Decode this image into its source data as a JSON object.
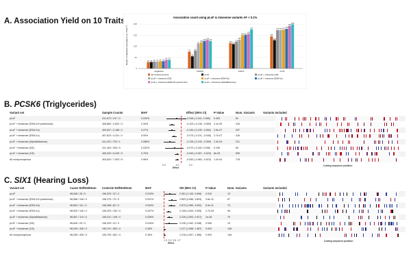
{
  "section_a": {
    "title": "A. Association Yield on 10 Traits"
  },
  "section_b": {
    "title_prefix": "B. ",
    "gene": "PCSK6",
    "title_suffix": " (Triglycerides)"
  },
  "section_c": {
    "title_prefix": "C. ",
    "gene": "SIX1",
    "title_suffix": " (Hearing Loss)"
  },
  "chart_data": {
    "type": "bar",
    "title": "Association count using pLoF & missense variants AF < 0.1%",
    "ylabel": "Number of significant associations (p < 5x10⁻⁸)",
    "categories": [
      "singletons",
      "0.001%",
      "0.01%",
      "0.1%"
    ],
    "series": [
      {
        "name": "All nonsynonymous",
        "color": "#d9661f",
        "values": [
          29,
          76,
          115,
          145
        ]
      },
      {
        "name": "pLoF",
        "color": "#111111",
        "values": [
          29,
          55,
          110,
          128
        ]
      },
      {
        "name": "pLoF + missense (1/5)",
        "color": "#8c8c8c",
        "values": [
          31,
          80,
          120,
          173
        ]
      },
      {
        "name": "pLoF + missense (3/5)",
        "color": "#a8a8a8",
        "values": [
          31,
          111,
          130,
          173
        ]
      },
      {
        "name": "pLoF + missense (ESM-1b)",
        "color": "#e7a51f",
        "values": [
          33,
          118,
          150,
          175
        ]
      },
      {
        "name": "pLoF + missense (ESM-1v)",
        "color": "#2b6cb0",
        "values": [
          33,
          124,
          151,
          179
        ]
      },
      {
        "name": "pLoF + missense (ESM-1b+proteomics)",
        "color": "#cc6fb7",
        "values": [
          39,
          129,
          156,
          192
        ]
      },
      {
        "name": "pLoF + missense (AlphaMissense)",
        "color": "#2eb8c2",
        "values": [
          39,
          124,
          177,
          199
        ]
      }
    ],
    "ylim": [
      0,
      210
    ],
    "grid": true,
    "legend": "bottom"
  },
  "table_b": {
    "headers": [
      "Variant set",
      "Sample Counts",
      "MAF",
      "Effect (95% CI)",
      "P-Value",
      "Num. Variants",
      "Variants Included"
    ],
    "axis_label": "Effect",
    "axis_ticks": [
      "-0.2",
      "-0.1",
      "0.0"
    ],
    "footer": "Coding sequence position",
    "rows": [
      [
        "pLoF",
        "411,679 / 247 / 0",
        "0.030%",
        "-0.048 (-0.161, 0.066)",
        "0.409",
        "81"
      ],
      [
        "pLoF + missense (ESM-1b+proteomics)",
        "408,882 / 2,832 / 3",
        "0.34%",
        "-0.103 (-0.136, -0.069)",
        "2.1e-09",
        "316"
      ],
      [
        "pLoF + missense (ESM-1b)",
        "409,537 / 2,188 / 1",
        "0.27%",
        "-0.100 (-0.139, -0.062)",
        "2.5e-07",
        "297"
      ],
      [
        "pLoF + missense (ESM-1v)",
        "407,623 / 4,101 / 2",
        "0.50%",
        "-0.073 (-0.101, -0.045)",
        "2.7e-07",
        "416"
      ],
      [
        "pLoF + missense (AlphaMissense)",
        "411,022 / 703 / 1",
        "0.086%",
        "-0.126 (-0.193, -0.059)",
        "2.3e-04",
        "221"
      ],
      [
        "pLoF + missense (3/5)",
        "411,493 / 283 / 0",
        "0.032%",
        "-0.072 (-0.182, 0.038)",
        "0.199",
        "84"
      ],
      [
        "pLoF + missense (1/5)",
        "405,294 / 6,439 / 3",
        "0.79%",
        "-0.040 (-0.067, -0.023)",
        "8e-05",
        "599"
      ],
      [
        "All nonsynonymous",
        "403,620 / 7,903 / 5",
        "0.96%",
        "-0.040 (-0.060, -0.019)",
        "1.2e-04",
        "718"
      ]
    ],
    "effects": [
      [
        -0.048,
        -0.161,
        0.066
      ],
      [
        -0.103,
        -0.136,
        -0.069
      ],
      [
        -0.1,
        -0.139,
        -0.062
      ],
      [
        -0.073,
        -0.101,
        -0.045
      ],
      [
        -0.126,
        -0.193,
        -0.059
      ],
      [
        -0.072,
        -0.182,
        0.038
      ],
      [
        -0.04,
        -0.067,
        -0.023
      ],
      [
        -0.04,
        -0.06,
        -0.019
      ]
    ]
  },
  "table_c": {
    "headers": [
      "Variant set",
      "Cases Ref/Het/Hom",
      "Controls Ref/Het/Hom",
      "MAF",
      "OR (95% CI)",
      "P-Value",
      "Num. Variants",
      "Variants Included"
    ],
    "axis_label": "Effect",
    "axis_ticks": [
      "1.5",
      "2.3",
      "3.5",
      "2.7"
    ],
    "footer": "Coding sequence position",
    "rows": [
      [
        "pLoF",
        "98,648 / 26 / 0",
        "196,329 / 22 / 0",
        "0.015%",
        "2.361 (1.145, 3.696)",
        "0.015",
        "13"
      ],
      [
        "pLoF + missense (ESM-1b+proteomics)",
        "98,568 / 106 / 0",
        "196,276 / 75 / 0",
        "0.031%",
        "2.803 (2.086, 3.803)",
        "3.6e-11",
        "67"
      ],
      [
        "pLoF + missense (ESM-1b)",
        "98,563 / 111 / 0",
        "196,268 / 82 / 0",
        "0.033%",
        "2.673 (1.989, 3.592)",
        "6.9e-11",
        "73"
      ],
      [
        "pLoF + missense (ESM-1v)",
        "98,525 / 145 / 0",
        "196,203 / 154 / 0",
        "0.047%",
        "2.108 (1.649, 2.695)",
        "2.7e-09",
        "96"
      ],
      [
        "pLoF + missense (AlphaMissense)",
        "98,551 / 119 / 0",
        "196,231 / 106 / 0",
        "0.036%",
        "2.226 (1.693, 2.927)",
        "1e-08",
        "79"
      ],
      [
        "pLoF + missense (3/5)",
        "98,645 / 29 / 0",
        "196,329 / 22 / 0",
        "0.016%",
        "2.226 (1.262, 3.938)",
        "0.006",
        "15"
      ],
      [
        "pLoF + missense (1/5)",
        "98,299 / 435 / 0",
        "195,701 / 650 / 0",
        "0.18%",
        "1.217 (1.068, 1.387)",
        "0.003",
        "146"
      ],
      [
        "All nonsynonymous",
        "98,269 / 405 / 0",
        "195,700 / 651 / 0",
        "0.18%",
        "1.216 (1.067, 1.386)",
        "0.003",
        "148"
      ]
    ],
    "effects": [
      [
        2.361,
        1.145,
        3.696
      ],
      [
        2.803,
        2.086,
        3.803
      ],
      [
        2.673,
        1.989,
        3.592
      ],
      [
        2.108,
        1.649,
        2.695
      ],
      [
        2.226,
        1.693,
        2.927
      ],
      [
        2.226,
        1.262,
        3.938
      ],
      [
        1.217,
        1.068,
        1.387
      ],
      [
        1.216,
        1.067,
        1.386
      ]
    ]
  }
}
